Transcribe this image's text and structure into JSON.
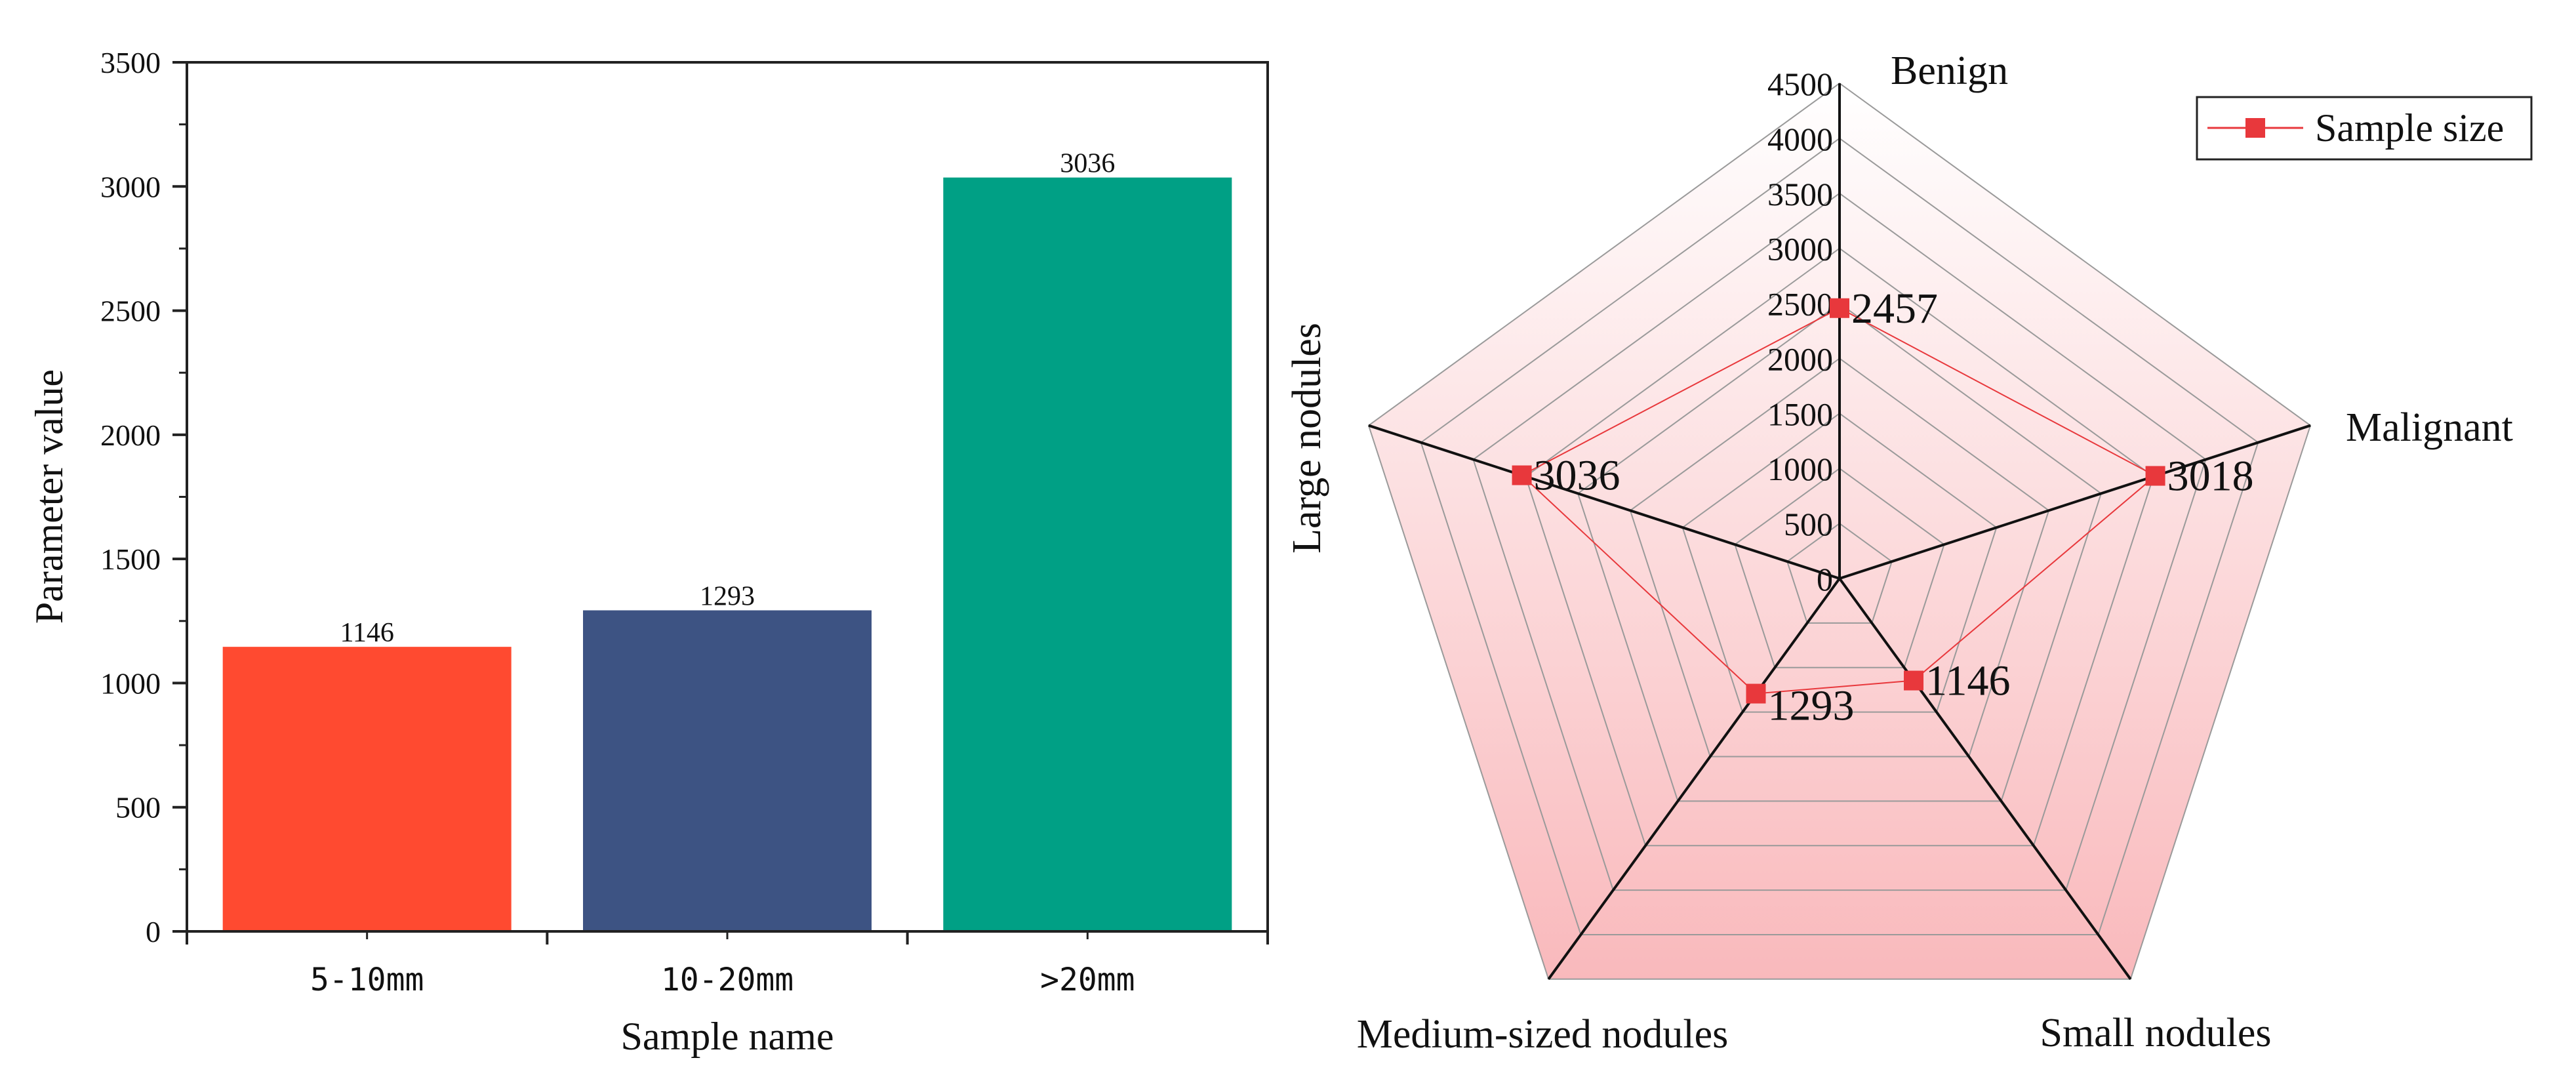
{
  "chart_data": [
    {
      "type": "bar",
      "title": "",
      "xlabel": "Sample name",
      "ylabel": "Parameter value",
      "categories": [
        "5-10mm",
        "10-20mm",
        ">20mm"
      ],
      "values": [
        1146,
        1293,
        3036
      ],
      "data_labels": [
        "1146",
        "1293",
        "3036"
      ],
      "colors": [
        "#FF4A30",
        "#3D5383",
        "#00A085"
      ],
      "ylim": [
        0,
        3500
      ],
      "yticks": [
        0,
        500,
        1000,
        1500,
        2000,
        2500,
        3000,
        3500
      ],
      "ytick_labels": [
        "0",
        "500",
        "1000",
        "1500",
        "2000",
        "2500",
        "3000",
        "3500"
      ],
      "grid": false
    },
    {
      "type": "radar",
      "axes": [
        "Benign",
        "Malignant",
        "Small nodules",
        "Medium-sized nodules",
        "Large nodules"
      ],
      "range": [
        0,
        4500
      ],
      "ticks": [
        0,
        500,
        1000,
        1500,
        2000,
        2500,
        3000,
        3500,
        4000,
        4500
      ],
      "tick_labels": [
        "0",
        "500",
        "1000",
        "1500",
        "2000",
        "2500",
        "3000",
        "3500",
        "4000",
        "4500"
      ],
      "series": [
        {
          "name": "Sample size",
          "values": [
            2457,
            3018,
            1146,
            1293,
            3036
          ],
          "labels": [
            "2457",
            "3018",
            "1146",
            "1293",
            "3036"
          ],
          "color": "#E8383C"
        }
      ],
      "fill_color": "#F9B9BC",
      "legend_position": "top-right"
    }
  ]
}
